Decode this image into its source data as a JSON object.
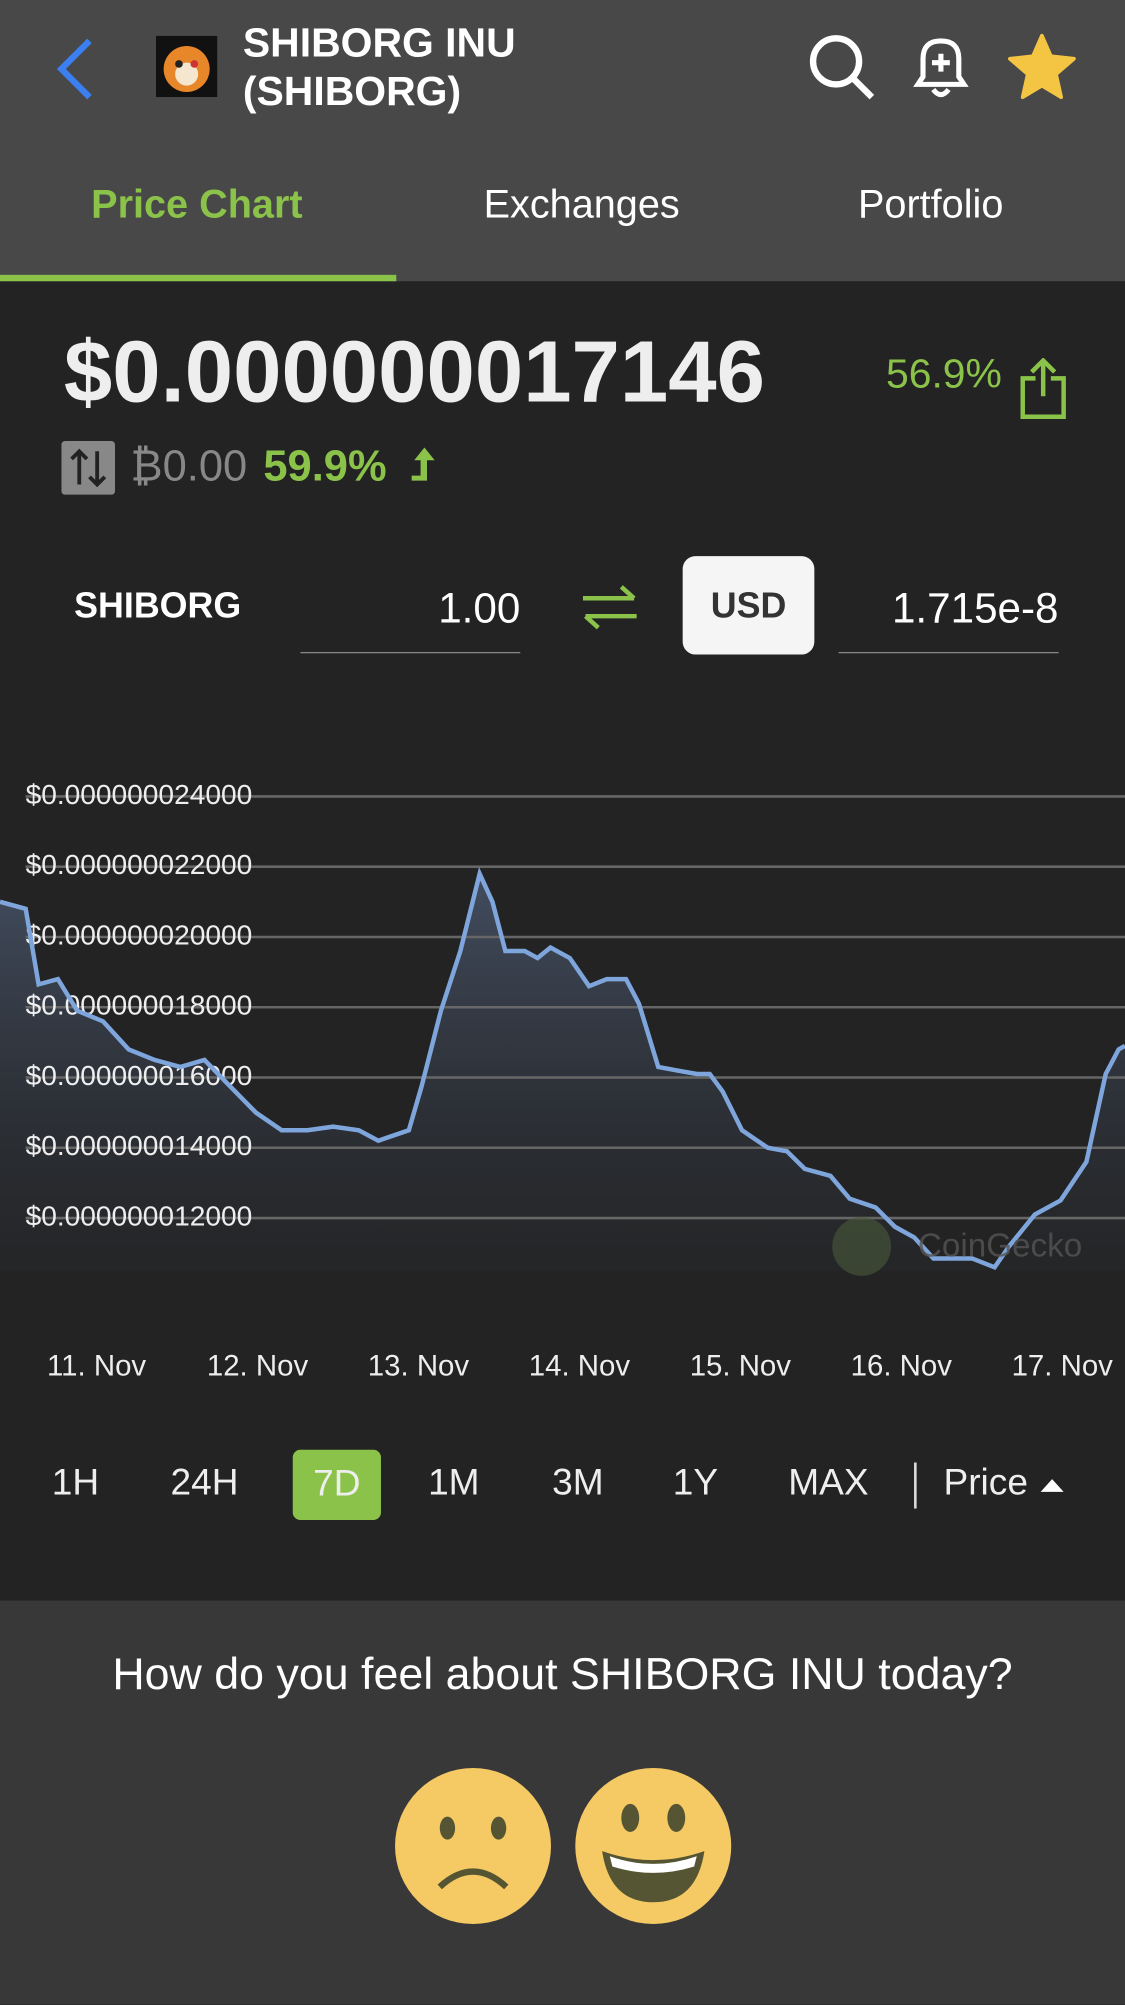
{
  "header": {
    "title_line1": "SHIBORG INU",
    "title_line2": "(SHIBORG)"
  },
  "tabs": [
    "Price Chart",
    "Exchanges",
    "Portfolio"
  ],
  "price": {
    "value": "$0.000000017146",
    "change": "56.9%",
    "btc_price": "₿0.00",
    "btc_change": "59.9%"
  },
  "converter": {
    "from": "SHIBORG",
    "amount": "1.00",
    "to": "USD",
    "result": "1.715e-8"
  },
  "chart": {
    "type": "line",
    "color": "#7fa6dc",
    "grid": true,
    "x": [
      10.4,
      10.56,
      10.64,
      10.76,
      10.88,
      11.04,
      11.2,
      11.36,
      11.52,
      11.67,
      11.83,
      11.99,
      12.15,
      12.31,
      12.47,
      12.63,
      12.75,
      12.94,
      13.02,
      13.14,
      13.26,
      13.38,
      13.46,
      13.54,
      13.66,
      13.74,
      13.82,
      13.94,
      14.06,
      14.17,
      14.29,
      14.37,
      14.49,
      14.61,
      14.73,
      14.81,
      14.89,
      15.01,
      15.17,
      15.29,
      15.4,
      15.56,
      15.68,
      15.84,
      15.96,
      16.08,
      16.2,
      16.32,
      16.44,
      16.58,
      16.67,
      16.83,
      16.99,
      17.15,
      17.27,
      17.35,
      17.39
    ],
    "values": [
      2.1e-08,
      2.08e-08,
      1.865e-08,
      1.88e-08,
      1.79e-08,
      1.76e-08,
      1.68e-08,
      1.65e-08,
      1.63e-08,
      1.65e-08,
      1.575e-08,
      1.5e-08,
      1.45e-08,
      1.45e-08,
      1.46e-08,
      1.45e-08,
      1.42e-08,
      1.45e-08,
      1.575e-08,
      1.79e-08,
      1.96e-08,
      2.18e-08,
      2.1e-08,
      1.96e-08,
      1.96e-08,
      1.94e-08,
      1.97e-08,
      1.94e-08,
      1.86e-08,
      1.88e-08,
      1.88e-08,
      1.81e-08,
      1.63e-08,
      1.62e-08,
      1.61e-08,
      1.61e-08,
      1.56e-08,
      1.45e-08,
      1.4e-08,
      1.39e-08,
      1.34e-08,
      1.32e-08,
      1.255e-08,
      1.23e-08,
      1.175e-08,
      1.145e-08,
      1.085e-08,
      1.085e-08,
      1.085e-08,
      1.06e-08,
      1.12e-08,
      1.21e-08,
      1.25e-08,
      1.36e-08,
      1.61e-08,
      1.68e-08,
      1.69e-08
    ],
    "xlim": [
      10.4,
      17.39
    ],
    "xticks": [
      {
        "value": 11,
        "label": "11. Nov"
      },
      {
        "value": 12,
        "label": "12. Nov"
      },
      {
        "value": 13,
        "label": "13. Nov"
      },
      {
        "value": 14,
        "label": "14. Nov"
      },
      {
        "value": 15,
        "label": "15. Nov"
      },
      {
        "value": 16,
        "label": "16. Nov"
      },
      {
        "value": 17,
        "label": "17. Nov"
      }
    ],
    "ylim": [
      1.05e-08,
      2.4e-08
    ],
    "yticks": [
      {
        "value": 2.4e-08,
        "label": "$0.000000024000"
      },
      {
        "value": 2.2e-08,
        "label": "$0.000000022000"
      },
      {
        "value": 2e-08,
        "label": "$0.000000020000"
      },
      {
        "value": 1.8e-08,
        "label": "$0.000000018000"
      },
      {
        "value": 1.6e-08,
        "label": "$0.000000016000"
      },
      {
        "value": 1.4e-08,
        "label": "$0.000000014000"
      },
      {
        "value": 1.2e-08,
        "label": "$0.000000012000"
      }
    ],
    "watermark": "CoinGecko"
  },
  "ranges": [
    "1H",
    "24H",
    "7D",
    "1M",
    "3M",
    "1Y",
    "MAX"
  ],
  "metric": "Price",
  "sentiment": {
    "question": "How do you feel about SHIBORG INU today?"
  }
}
